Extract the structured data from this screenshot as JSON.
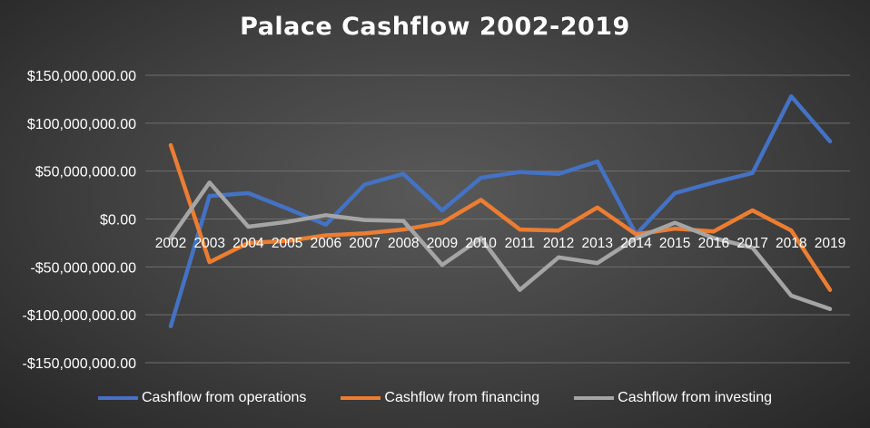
{
  "chart_data": {
    "type": "line",
    "title": "Palace Cashflow 2002-2019",
    "categories": [
      "2002",
      "2003",
      "2004",
      "2005",
      "2006",
      "2007",
      "2008",
      "2009",
      "2010",
      "2011",
      "2012",
      "2013",
      "2014",
      "2015",
      "2016",
      "2017",
      "2018",
      "2019"
    ],
    "ylim": [
      -150000000,
      150000000
    ],
    "yticks": [
      150000000,
      100000000,
      50000000,
      0,
      -50000000,
      -100000000,
      -150000000
    ],
    "ytick_labels": [
      "$150,000,000.00",
      "$100,000,000.00",
      "$50,000,000.00",
      "$0.00",
      "-$50,000,000.00",
      "-$100,000,000.00",
      "-$150,000,000.00"
    ],
    "grid": true,
    "legend_position": "bottom",
    "series": [
      {
        "name": "Cashflow from operations",
        "color": "#4472c4",
        "values": [
          -112000000,
          24000000,
          27000000,
          11000000,
          -6000000,
          36000000,
          47000000,
          9000000,
          43000000,
          49000000,
          47000000,
          60000000,
          -16000000,
          27000000,
          38000000,
          48000000,
          128000000,
          81000000
        ]
      },
      {
        "name": "Cashflow from financing",
        "color": "#ed7d31",
        "values": [
          77000000,
          -45000000,
          -25000000,
          -23000000,
          -17000000,
          -15000000,
          -11000000,
          -4000000,
          20000000,
          -11000000,
          -12000000,
          12000000,
          -16000000,
          -10000000,
          -13000000,
          9000000,
          -12000000,
          -74000000
        ]
      },
      {
        "name": "Cashflow from investing",
        "color": "#a5a5a5",
        "values": [
          -20000000,
          38000000,
          -8000000,
          -3000000,
          4000000,
          -1000000,
          -2000000,
          -48000000,
          -20000000,
          -74000000,
          -40000000,
          -46000000,
          -20000000,
          -4000000,
          -20000000,
          -30000000,
          -80000000,
          -94000000
        ]
      }
    ]
  }
}
